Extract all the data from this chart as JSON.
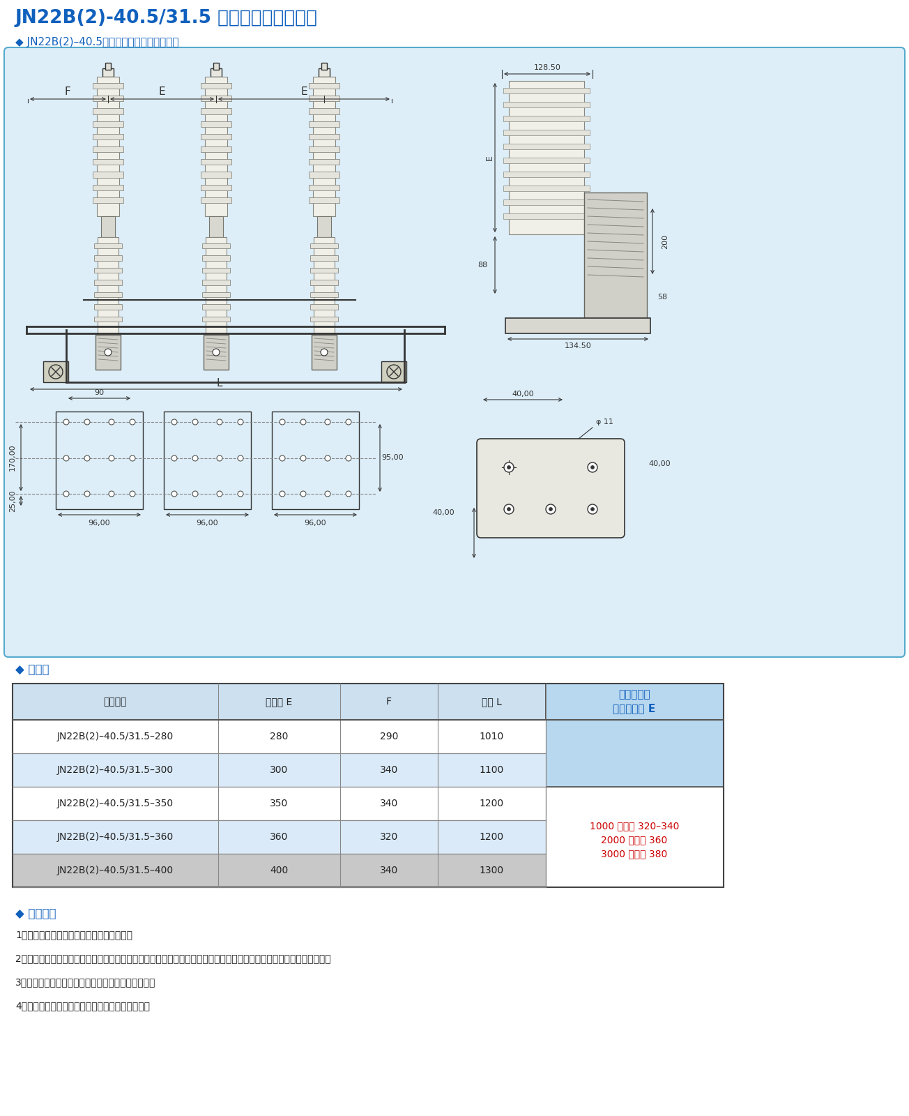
{
  "title": "JN22B(2)-40.5/31.5 型户内高压接地开关",
  "subtitle": "◆ JN22B(2)–40.5（改进型）外形及安装尺寸",
  "section2_title": "◆ 配套表",
  "section3_title": "◆ 订货须知",
  "table_headers": [
    "产品型号",
    "相间距 E",
    "F",
    "主轴 L"
  ],
  "last_col_line1": "高原型配比",
  "last_col_line2": "传感器高度 E",
  "table_rows": [
    [
      "JN22B(2)–40.5/31.5–280",
      "280",
      "290",
      "1010"
    ],
    [
      "JN22B(2)–40.5/31.5–300",
      "300",
      "340",
      "1100"
    ],
    [
      "JN22B(2)–40.5/31.5–350",
      "350",
      "340",
      "1200"
    ],
    [
      "JN22B(2)–40.5/31.5–360",
      "360",
      "320",
      "1200"
    ],
    [
      "JN22B(2)–40.5/31.5–400",
      "400",
      "340",
      "1300"
    ]
  ],
  "altitude_line1": "1000 米以下 320–340",
  "altitude_line2": "2000 米以下 360",
  "altitude_line3": "3000 米以下 380",
  "order_notes": [
    "1、请注明产品型号、额定电压、相间距离。",
    "2、需配齿轮操动机构时，请按图示的左操作或右操作方位（图示为左操作方式），对应注明右操作机构或左操作．机构。",
    "3、需供传感器带电显示装置时，请注明显示器类型。",
    "4、用户有特殊要求可另行协商制定详细供货规格。"
  ],
  "title_color": "#1060bd",
  "blue_color": "#1060bd",
  "red_color": "#cc0000",
  "table_header_bg": "#cce0f0",
  "table_row_bg_white": "#ffffff",
  "table_row_bg_blue": "#daeaf8",
  "table_row_bg_gray": "#c8c8c8",
  "last_col_bg_top": "#b8d8f0",
  "diagram_bg": "#ddeef8",
  "border_color": "#55aacc",
  "dim_color": "#333333",
  "draw_color": "#333333"
}
